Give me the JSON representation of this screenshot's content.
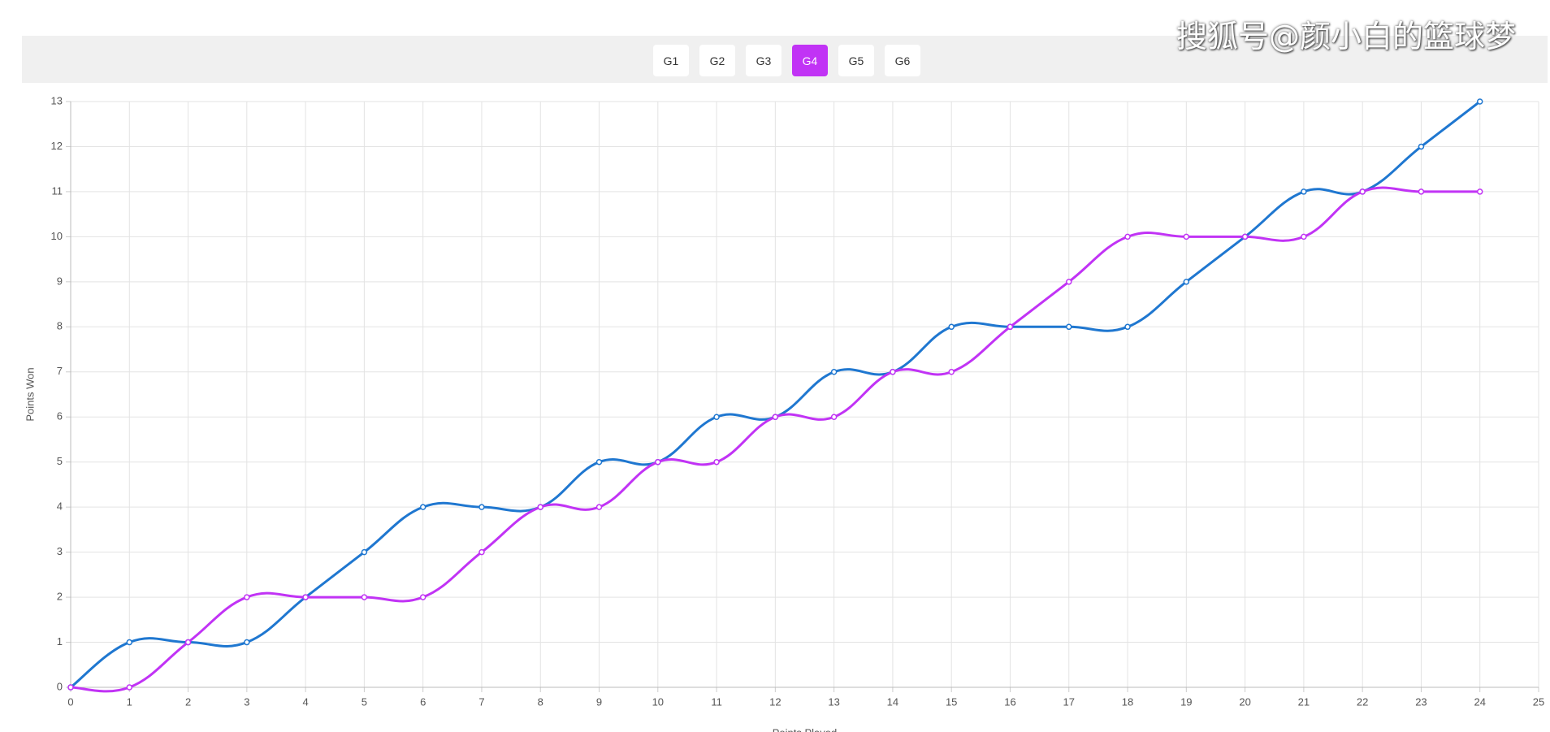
{
  "tabs": {
    "items": [
      "G1",
      "G2",
      "G3",
      "G4",
      "G5",
      "G6"
    ],
    "selected": 3,
    "active_color": "#c133f5"
  },
  "watermark": "搜狐号@颜小白的篮球梦",
  "chart_data": {
    "type": "line",
    "x_label": "Points Played",
    "y_label": "Points Won",
    "x": [
      0,
      1,
      2,
      3,
      4,
      5,
      6,
      7,
      8,
      9,
      10,
      11,
      12,
      13,
      14,
      15,
      16,
      17,
      18,
      19,
      20,
      21,
      22,
      23,
      24
    ],
    "series": [
      {
        "color": "#1f77d0",
        "values": [
          0,
          1,
          1,
          1,
          2,
          3,
          4,
          4,
          4,
          5,
          5,
          6,
          6,
          7,
          7,
          8,
          8,
          8,
          8,
          9,
          10,
          11,
          11,
          12,
          13
        ]
      },
      {
        "color": "#c133f5",
        "values": [
          0,
          0,
          1,
          2,
          2,
          2,
          2,
          3,
          4,
          4,
          5,
          5,
          6,
          6,
          7,
          7,
          8,
          9,
          10,
          10,
          10,
          10,
          11,
          11,
          11
        ]
      }
    ],
    "xlim": [
      0,
      25
    ],
    "xticks": [
      0,
      1,
      2,
      3,
      4,
      5,
      6,
      7,
      8,
      9,
      10,
      11,
      12,
      13,
      14,
      15,
      16,
      17,
      18,
      19,
      20,
      21,
      22,
      23,
      24,
      25
    ],
    "ylim": [
      0,
      13
    ],
    "yticks": [
      0,
      1,
      2,
      3,
      4,
      5,
      6,
      7,
      8,
      9,
      10,
      11,
      12,
      13
    ],
    "grid": true
  }
}
